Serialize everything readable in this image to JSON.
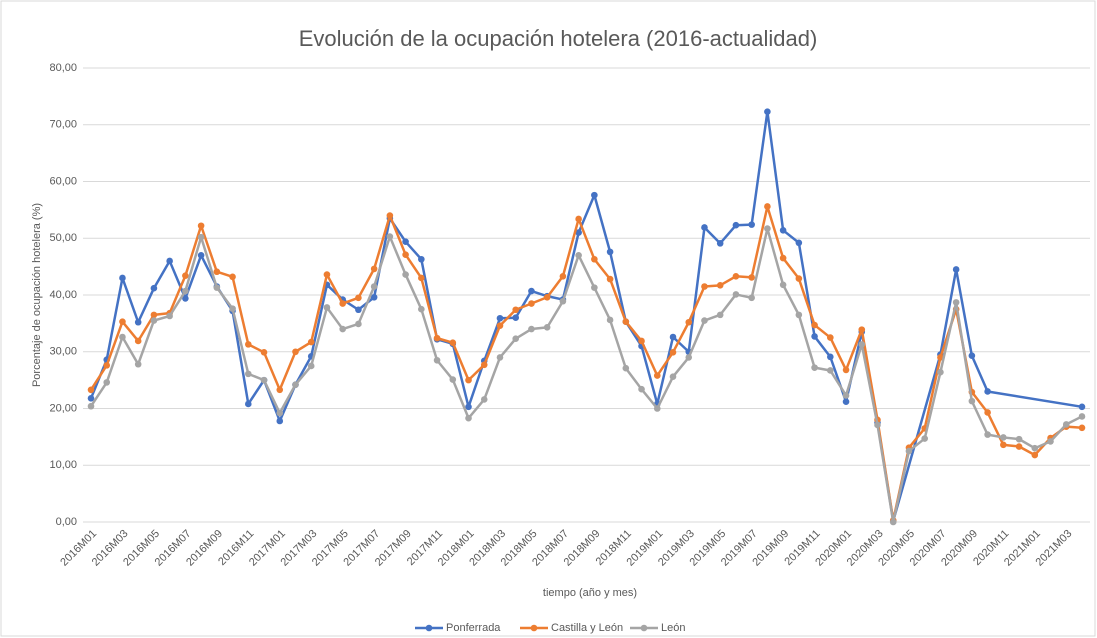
{
  "chart_data": {
    "type": "line",
    "title": "Evolución de la ocupación hotelera (2016-actualidad)",
    "x_label": "tiempo (año y mes)",
    "y_label": "Porcentaje de ocupación hotelera (%)",
    "categories": [
      "2016M01",
      null,
      "2016M03",
      null,
      "2016M05",
      null,
      "2016M07",
      null,
      "2016M09",
      null,
      "2016M11",
      null,
      "2017M01",
      null,
      "2017M03",
      null,
      "2017M05",
      null,
      "2017M07",
      null,
      "2017M09",
      null,
      "2017M11",
      null,
      "2018M01",
      null,
      "2018M03",
      null,
      "2018M05",
      null,
      "2018M07",
      null,
      "2018M09",
      null,
      "2018M11",
      null,
      "2019M01",
      null,
      "2019M03",
      null,
      "2019M05",
      null,
      "2019M07",
      null,
      "2019M09",
      null,
      "2019M11",
      null,
      "2020M01",
      null,
      "2020M03",
      null,
      "2020M05",
      null,
      "2020M07",
      null,
      "2020M09",
      null,
      "2020M11",
      null,
      "2021M01",
      null,
      "2021M03",
      null
    ],
    "series": [
      {
        "name": "Ponferrada",
        "color": "#4472c4",
        "values": [
          21.8,
          28.6,
          43,
          35.2,
          41.2,
          46,
          39.4,
          47,
          41.5,
          37.2,
          20.8,
          25,
          17.8,
          24.2,
          29.2,
          41.8,
          39.2,
          37.4,
          39.6,
          53.5,
          49.4,
          46.3,
          32.2,
          31.4,
          20.3,
          28.4,
          35.9,
          36,
          40.7,
          39.8,
          39.2,
          51,
          57.6,
          47.6,
          35.3,
          31,
          20.8,
          32.6,
          30,
          51.9,
          49.1,
          52.3,
          52.4,
          72.3,
          51.4,
          49.2,
          32.7,
          29.1,
          21.2,
          33.5,
          17.5,
          0.2,
          null,
          null,
          29.5,
          44.5,
          29.3,
          23,
          null,
          null,
          null,
          null,
          null,
          20.3
        ]
      },
      {
        "name": "Castilla y León",
        "color": "#ed7d31",
        "values": [
          23.3,
          27.6,
          35.3,
          31.9,
          36.5,
          36.8,
          43.4,
          52.2,
          44.1,
          43.2,
          31.3,
          29.9,
          23.3,
          30,
          31.7,
          43.6,
          38.5,
          39.5,
          44.6,
          54,
          47.1,
          43,
          32.4,
          31.6,
          25,
          27.7,
          34.6,
          37.4,
          38.5,
          39.6,
          43.3,
          53.4,
          46.3,
          42.8,
          35.3,
          31.9,
          25.8,
          29.9,
          35.2,
          41.5,
          41.7,
          43.3,
          43.1,
          55.6,
          46.5,
          42.9,
          34.7,
          32.5,
          26.8,
          33.9,
          18,
          0.3,
          13.1,
          16.5,
          29,
          37.5,
          22.9,
          19.3,
          13.6,
          13.3,
          11.8,
          14.8,
          16.8,
          16.6
        ]
      },
      {
        "name": "León",
        "color": "#a5a5a5",
        "values": [
          20.4,
          24.6,
          32.6,
          27.8,
          35.5,
          36.3,
          40.7,
          50.2,
          41.3,
          37.6,
          26.1,
          25,
          19.2,
          24.2,
          27.5,
          37.8,
          34,
          34.9,
          41.5,
          50.3,
          43.6,
          37.5,
          28.5,
          25.1,
          18.3,
          21.6,
          29,
          32.3,
          34,
          34.3,
          38.9,
          47,
          41.3,
          35.6,
          27.1,
          23.4,
          20,
          25.6,
          29,
          35.5,
          36.5,
          40.1,
          39.5,
          51.7,
          41.8,
          36.5,
          27.2,
          26.7,
          22.3,
          31.3,
          17.1,
          0,
          12.5,
          14.7,
          26.4,
          38.7,
          21.3,
          15.4,
          14.9,
          14.6,
          13,
          14.2,
          17.2,
          18.6
        ]
      }
    ],
    "ylim": [
      0,
      80
    ],
    "yticks": [
      {
        "value": 0,
        "label": "0,00"
      },
      {
        "value": 10,
        "label": "10,00"
      },
      {
        "value": 20,
        "label": "20,00"
      },
      {
        "value": 30,
        "label": "30,00"
      },
      {
        "value": 40,
        "label": "40,00"
      },
      {
        "value": 50,
        "label": "50,00"
      },
      {
        "value": 60,
        "label": "60,00"
      },
      {
        "value": 70,
        "label": "70,00"
      },
      {
        "value": 80,
        "label": "80,00"
      }
    ],
    "grid": true,
    "span_gaps": true,
    "legend": "bottom"
  }
}
